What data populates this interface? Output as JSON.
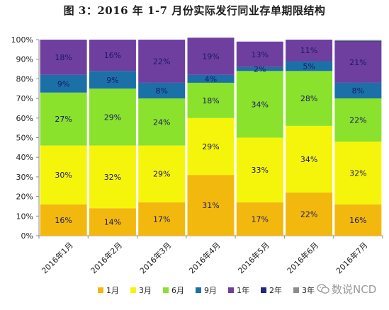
{
  "chart_data": {
    "type": "bar",
    "stacked": true,
    "title": "图 3：2016 年 1-7 月份实际发行同业存单期限结构",
    "categories": [
      "2016年1月",
      "2016年2月",
      "2016年3月",
      "2016年4月",
      "2016年5月",
      "2016年6月",
      "2016年7月"
    ],
    "ylim": [
      0,
      100
    ],
    "yticks": [
      "0%",
      "10%",
      "20%",
      "30%",
      "40%",
      "50%",
      "60%",
      "70%",
      "80%",
      "90%",
      "100%"
    ],
    "grid": false,
    "legend_position": "bottom",
    "series": [
      {
        "name": "1月",
        "color": "#f3b80e",
        "values": [
          16,
          14,
          17,
          31,
          17,
          22,
          16
        ],
        "labels": [
          "16%",
          "14%",
          "17%",
          "31%",
          "17%",
          "22%",
          "16%"
        ]
      },
      {
        "name": "3月",
        "color": "#f5f50c",
        "values": [
          30,
          32,
          29,
          29,
          33,
          34,
          32
        ],
        "labels": [
          "30%",
          "32%",
          "29%",
          "29%",
          "33%",
          "34%",
          "32%"
        ]
      },
      {
        "name": "6月",
        "color": "#8ae22c",
        "values": [
          27,
          29,
          24,
          18,
          34,
          28,
          22
        ],
        "labels": [
          "27%",
          "29%",
          "24%",
          "18%",
          "34%",
          "28%",
          "22%"
        ]
      },
      {
        "name": "9月",
        "color": "#1b70a8",
        "values": [
          9,
          9,
          8,
          4,
          2,
          5,
          8
        ],
        "labels": [
          "9%",
          "9%",
          "8%",
          "4%",
          "2%",
          "5%",
          "8%"
        ]
      },
      {
        "name": "1年",
        "color": "#6f3fa0",
        "values": [
          18,
          16,
          22,
          19,
          13,
          11,
          21
        ],
        "labels": [
          "18%",
          "16%",
          "22%",
          "19%",
          "13%",
          "11%",
          "21%"
        ]
      },
      {
        "name": "2年",
        "color": "#1f2a7a",
        "values": [
          0,
          0,
          0,
          0,
          0,
          0,
          0.4
        ],
        "labels": [
          "",
          "",
          "",
          "",
          "",
          "",
          ""
        ]
      },
      {
        "name": "3年",
        "color": "#8c8c8c",
        "values": [
          0,
          0,
          0,
          0,
          0,
          0,
          0.4
        ],
        "labels": [
          "",
          "",
          "",
          "",
          "",
          "",
          ""
        ]
      }
    ]
  },
  "watermark": {
    "text": "数说NCD"
  }
}
